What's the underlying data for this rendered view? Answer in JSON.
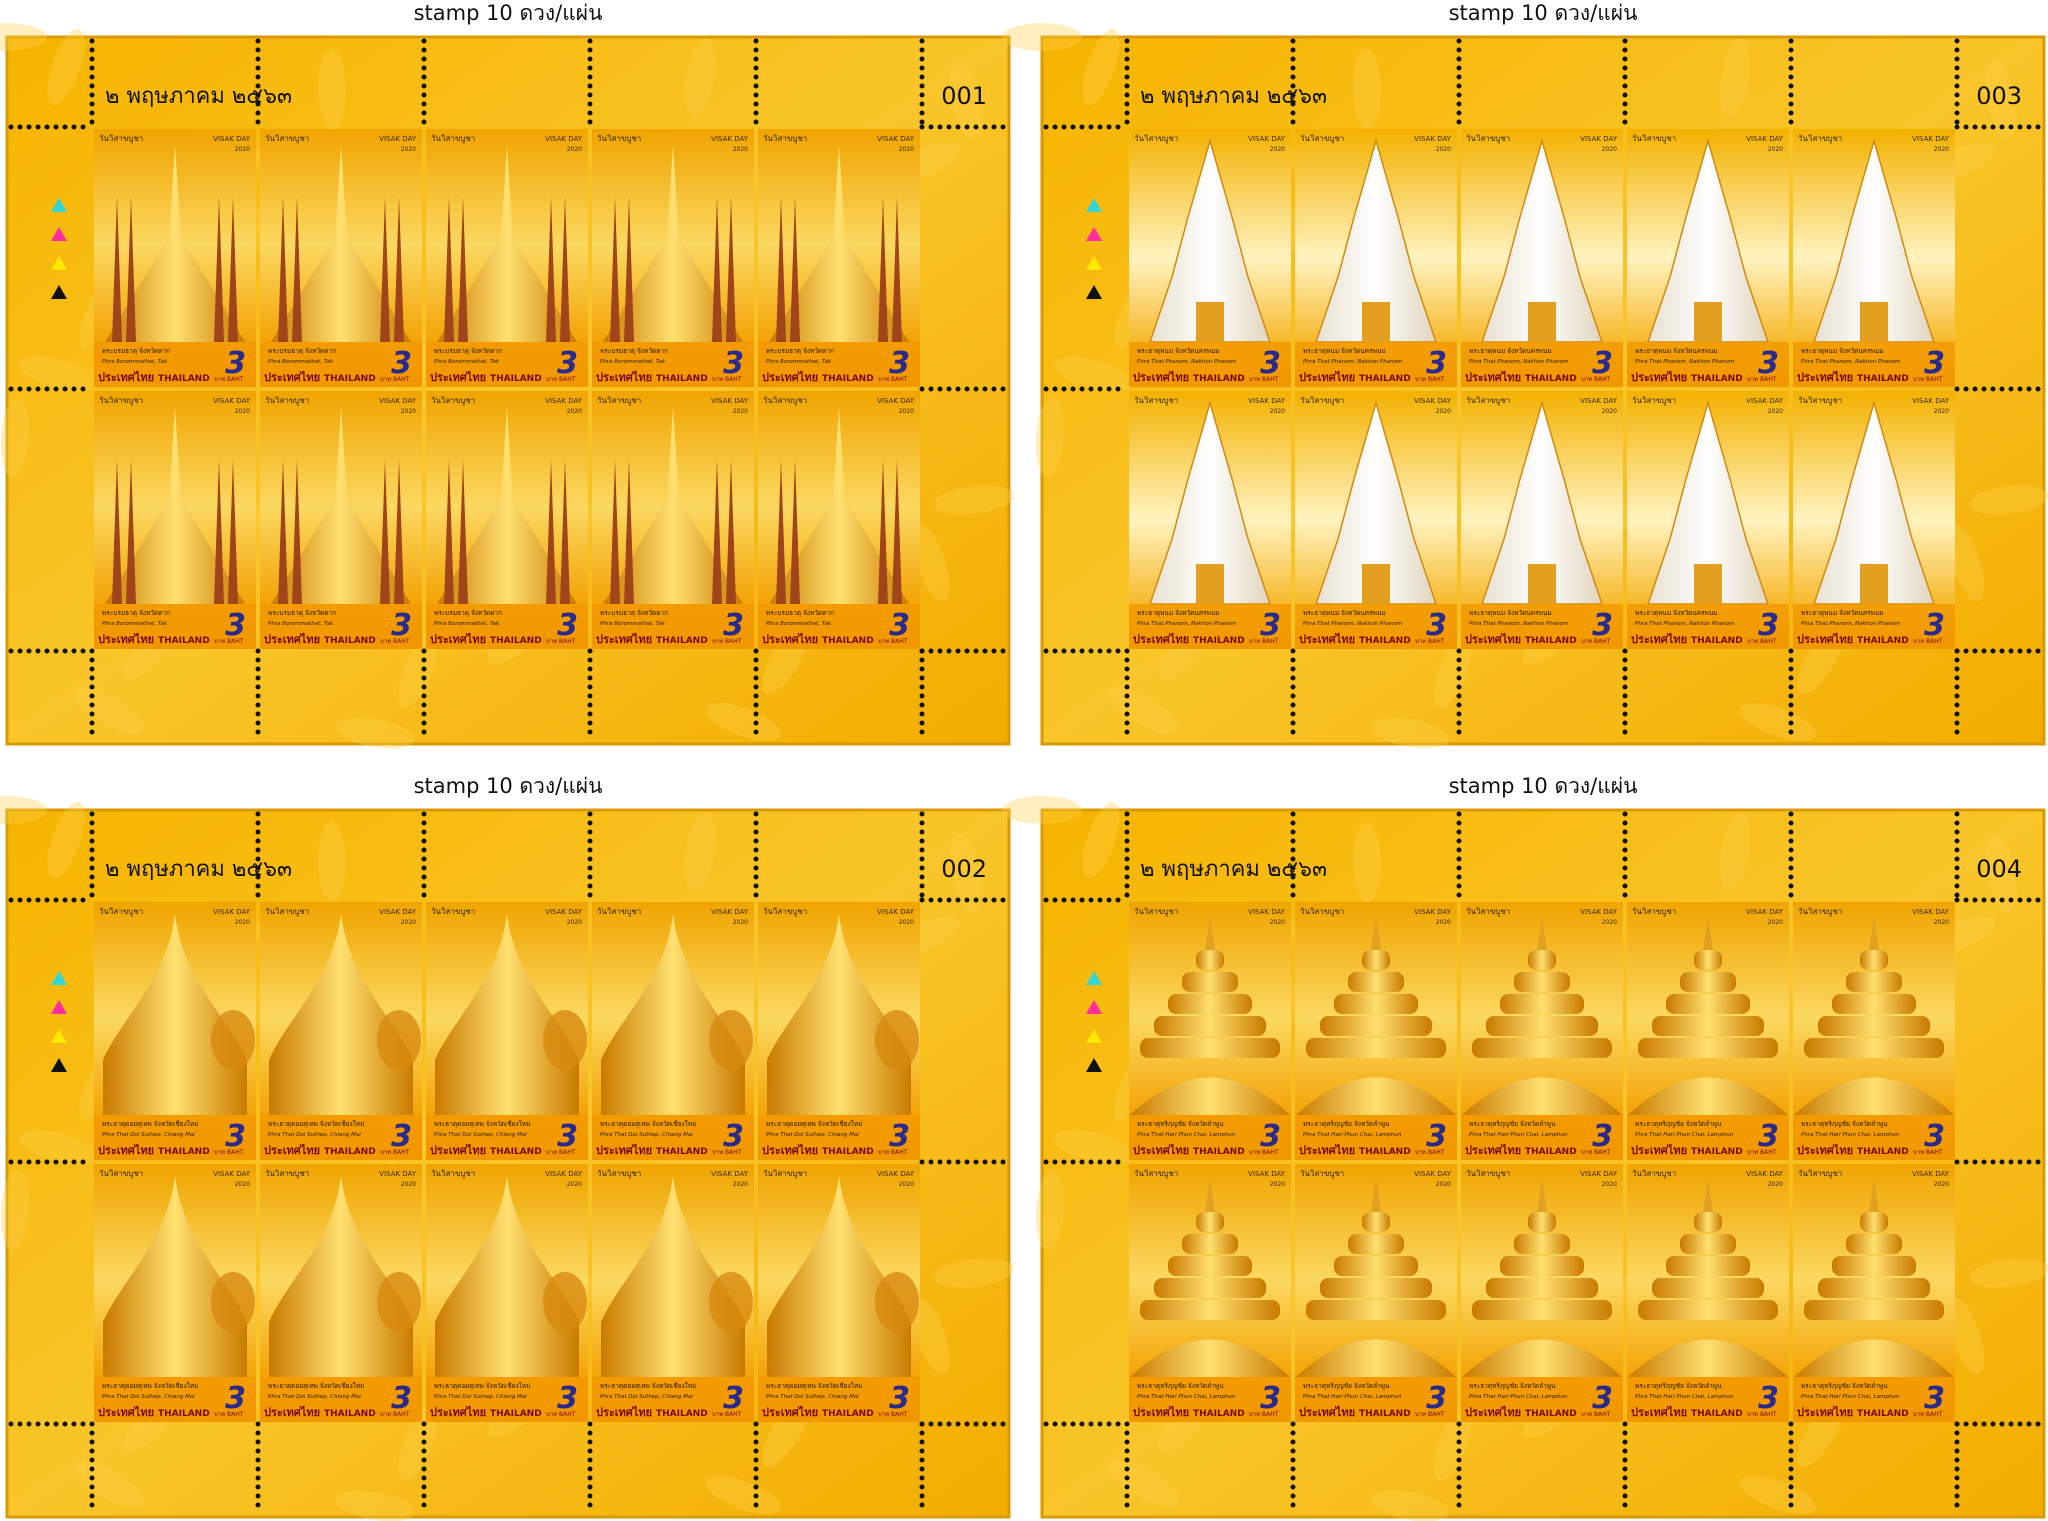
{
  "stamp_common": {
    "festival_th": "วันวิสาขบูชา",
    "festival_en": "VISAK DAY",
    "year": "2020",
    "value": "3",
    "country_th": "ประเทศไทย",
    "country_en": "THAILAND",
    "currency": "บาท BAHT"
  },
  "sheets": [
    {
      "caption": "stamp 10 ดวง/แผ่น",
      "date": "๒ พฤษภาคม ๒๕๖๓",
      "number": "001",
      "name_th": "พระบรมธาตุ จังหวัดตาก",
      "name_en": "Phra Borommathat, Tak"
    },
    {
      "caption": "stamp 10 ดวง/แผ่น",
      "date": "๒ พฤษภาคม ๒๕๖๓",
      "number": "003",
      "name_th": "พระธาตุพนม จังหวัดนครพนม",
      "name_en": "Phra That Phanom, Nakhon Phanom"
    },
    {
      "caption": "stamp 10 ดวง/แผ่น",
      "date": "๒ พฤษภาคม ๒๕๖๓",
      "number": "002",
      "name_th": "พระธาตุดอยสุเทพ จังหวัดเชียงใหม่",
      "name_en": "Phra That Doi Suthep, Chiang Mai"
    },
    {
      "caption": "stamp 10 ดวง/แผ่น",
      "date": "๒ พฤษภาคม ๒๕๖๓",
      "number": "004",
      "name_th": "พระธาตุหริภุญชัย จังหวัดลำพูน",
      "name_en": "Phra That Hari Phun Chai, Lamphun"
    }
  ]
}
